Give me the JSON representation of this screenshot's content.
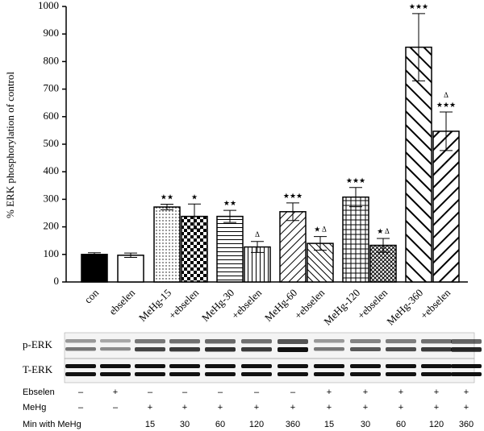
{
  "chart_data": {
    "type": "bar",
    "y_label": "% ERK phosphorylation of control",
    "categories": [
      "con",
      "ebselen",
      "MeHg-15",
      "+ebselen",
      "MeHg-30",
      "+ebselen",
      "MeHg-60",
      "+ebselen",
      "MeHg-120",
      "+ebselen",
      "MeHg-360",
      "+ebselen"
    ],
    "values": [
      100,
      97,
      272,
      238,
      238,
      127,
      255,
      140,
      308,
      133,
      852,
      547
    ],
    "errors": [
      6,
      8,
      10,
      45,
      22,
      20,
      32,
      25,
      35,
      25,
      122,
      70
    ],
    "annotations": [
      null,
      null,
      [
        "★★"
      ],
      [
        "★"
      ],
      [
        "★★"
      ],
      [
        "Δ"
      ],
      [
        "★★★"
      ],
      [
        "★ Δ"
      ],
      [
        "★★★"
      ],
      [
        "★ Δ"
      ],
      [
        "★★★"
      ],
      [
        "Δ",
        "★★★"
      ]
    ],
    "patterns": [
      "black",
      "white",
      "dots",
      "checker",
      "hlines",
      "vlines",
      "diag-fwd",
      "diag-back",
      "grid",
      "cross",
      "diag-back-wide",
      "diag-fwd-wide"
    ],
    "ylim": [
      0,
      1000
    ],
    "yticks": [
      0,
      100,
      200,
      300,
      400,
      500,
      600,
      700,
      800,
      900,
      1000
    ]
  },
  "blot": {
    "rows": [
      "p-ERK",
      "T-ERK"
    ]
  },
  "lane_table": [
    {
      "label": "Ebselen",
      "cells": [
        "–",
        "+",
        "–",
        "–",
        "–",
        "–",
        "–",
        "+",
        "+",
        "+",
        "+",
        "+"
      ]
    },
    {
      "label": "MeHg",
      "cells": [
        "–",
        "–",
        "+",
        "+",
        "+",
        "+",
        "+",
        "+",
        "+",
        "+",
        "+",
        "+"
      ]
    },
    {
      "label": "Min with MeHg",
      "cells": [
        null,
        null,
        "15",
        "30",
        "60",
        "120",
        "360",
        "15",
        "30",
        "60",
        "120",
        "360"
      ]
    }
  ]
}
